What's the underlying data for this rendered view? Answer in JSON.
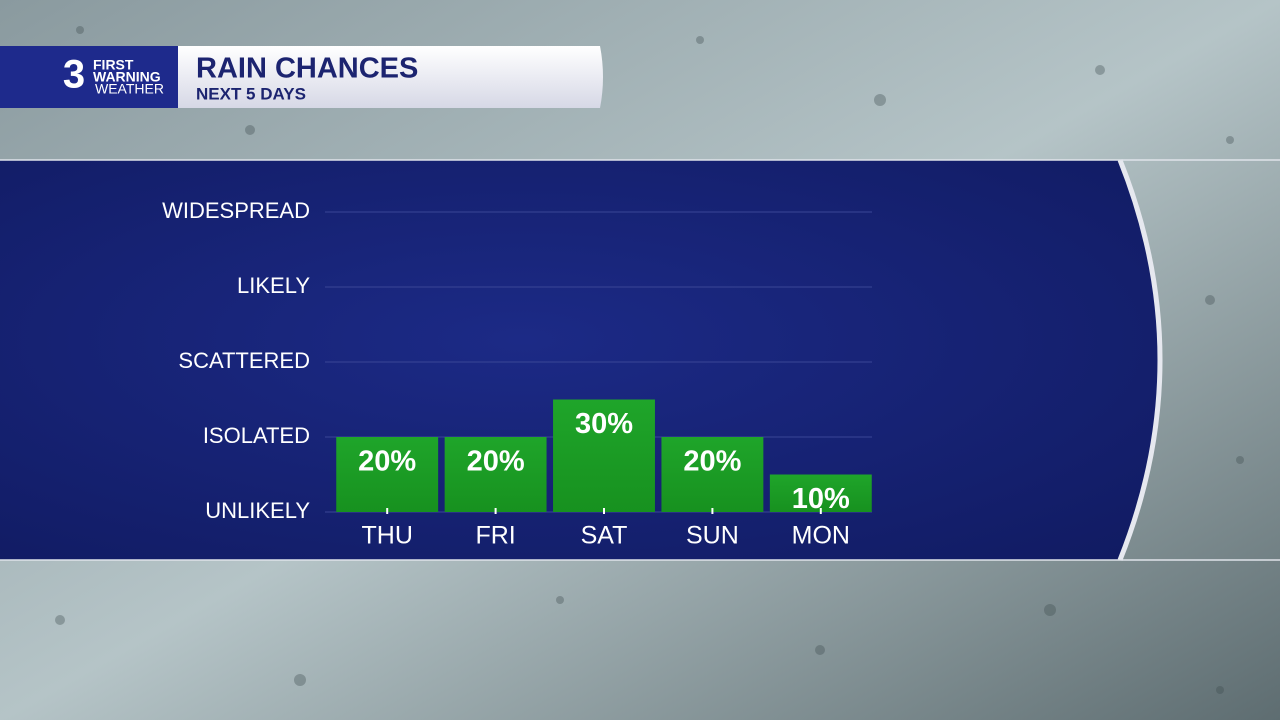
{
  "logo": {
    "number": "3",
    "line1": "FIRST",
    "line2": "WARNING",
    "line3": "WEATHER"
  },
  "chart_data": {
    "type": "bar",
    "title": "RAIN CHANCES",
    "subtitle": "NEXT 5 DAYS",
    "categories": [
      "THU",
      "FRI",
      "SAT",
      "SUN",
      "MON"
    ],
    "values": [
      20,
      20,
      30,
      20,
      10
    ],
    "value_labels": [
      "20%",
      "20%",
      "30%",
      "20%",
      "10%"
    ],
    "color": "#1fa52a",
    "ylim": [
      0,
      80
    ],
    "yticks": [
      {
        "value": 0,
        "label": "UNLIKELY"
      },
      {
        "value": 20,
        "label": "ISOLATED"
      },
      {
        "value": 40,
        "label": "SCATTERED"
      },
      {
        "value": 60,
        "label": "LIKELY"
      },
      {
        "value": 80,
        "label": "WIDESPREAD"
      }
    ],
    "grid": true
  }
}
